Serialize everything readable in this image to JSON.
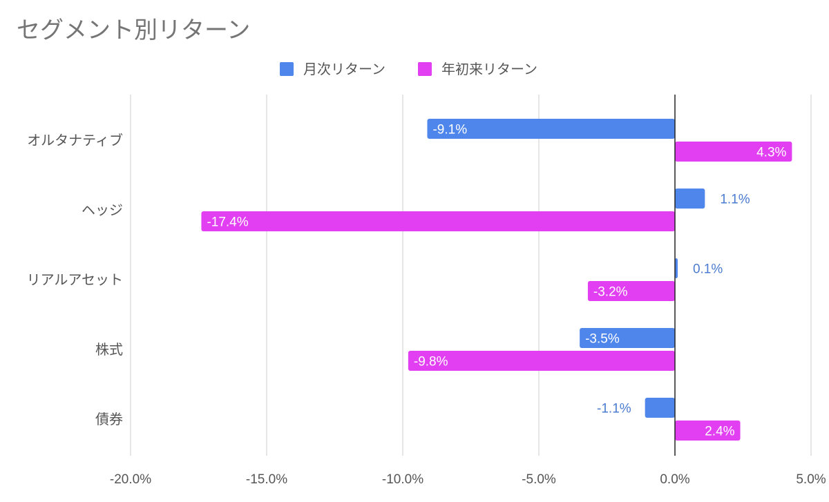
{
  "chart_data": {
    "type": "bar",
    "orientation": "horizontal",
    "title": "セグメント別リターン",
    "categories": [
      "オルタナティブ",
      "ヘッジ",
      "リアルアセット",
      "株式",
      "債券"
    ],
    "series": [
      {
        "name": "月次リターン",
        "color": "#4f86ec",
        "values": [
          -9.1,
          1.1,
          0.1,
          -3.5,
          -1.1
        ],
        "labels": [
          "-9.1%",
          "1.1%",
          "0.1%",
          "-3.5%",
          "-1.1%"
        ]
      },
      {
        "name": "年初来リターン",
        "color": "#e23ff2",
        "values": [
          4.3,
          -17.4,
          -3.2,
          -9.8,
          2.4
        ],
        "labels": [
          "4.3%",
          "-17.4%",
          "-3.2%",
          "-9.8%",
          "2.4%"
        ]
      }
    ],
    "xlim": [
      -20,
      5
    ],
    "xticks": [
      -20,
      -15,
      -10,
      -5,
      0,
      5
    ],
    "xtick_labels": [
      "-20.0%",
      "-15.0%",
      "-10.0%",
      "-5.0%",
      "0.0%",
      "5.0%"
    ],
    "grid": true,
    "legend": "top-center",
    "xlabel": "",
    "ylabel": ""
  }
}
